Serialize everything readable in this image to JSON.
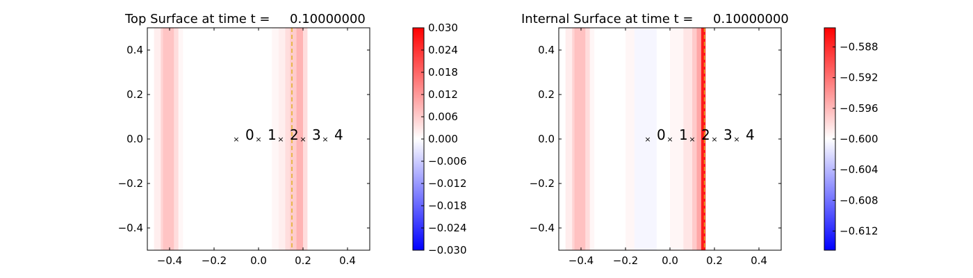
{
  "chart_data": [
    {
      "type": "heatmap",
      "title": "Top Surface at time t =     0.10000000",
      "xlim": [
        -0.5,
        0.5
      ],
      "ylim": [
        -0.5,
        0.5
      ],
      "x_ticks": [
        "−0.4",
        "−0.2",
        "0.0",
        "0.2",
        "0.4"
      ],
      "x_tick_values": [
        -0.4,
        -0.2,
        0.0,
        0.2,
        0.4
      ],
      "y_ticks": [
        "0.4",
        "0.2",
        "0.0",
        "−0.2",
        "−0.4"
      ],
      "y_tick_values": [
        0.4,
        0.2,
        0.0,
        -0.2,
        -0.4
      ],
      "colormap": {
        "min_color": "#0000ff",
        "mid_color": "#ffffff",
        "max_color": "#ff0000"
      },
      "vmin": -0.03,
      "vmax": 0.03,
      "colorbar_ticks": [
        "0.030",
        "0.024",
        "0.018",
        "0.012",
        "0.006",
        "0.000",
        "−0.006",
        "−0.012",
        "−0.018",
        "−0.024",
        "−0.030"
      ],
      "colorbar_tick_values": [
        0.03,
        0.024,
        0.018,
        0.012,
        0.006,
        0.0,
        -0.006,
        -0.012,
        -0.018,
        -0.024,
        -0.03
      ],
      "bands": [
        {
          "x0": -0.47,
          "x1": -0.44,
          "value": 0.002
        },
        {
          "x0": -0.44,
          "x1": -0.43,
          "value": 0.005
        },
        {
          "x0": -0.43,
          "x1": -0.38,
          "value": 0.007
        },
        {
          "x0": -0.38,
          "x1": -0.36,
          "value": 0.004
        },
        {
          "x0": -0.36,
          "x1": -0.34,
          "value": 0.001
        },
        {
          "x0": 0.06,
          "x1": 0.09,
          "value": 0.001
        },
        {
          "x0": 0.09,
          "x1": 0.12,
          "value": 0.002
        },
        {
          "x0": 0.12,
          "x1": 0.14,
          "value": 0.004
        },
        {
          "x0": 0.14,
          "x1": 0.17,
          "value": 0.006
        },
        {
          "x0": 0.17,
          "x1": 0.2,
          "value": 0.009
        },
        {
          "x0": 0.2,
          "x1": 0.22,
          "value": 0.004
        }
      ],
      "dashed_line_x": 0.15,
      "gauges": [
        {
          "x": -0.1,
          "y": 0.0,
          "label": "0"
        },
        {
          "x": 0.0,
          "y": 0.0,
          "label": "1"
        },
        {
          "x": 0.1,
          "y": 0.0,
          "label": "2"
        },
        {
          "x": 0.2,
          "y": 0.0,
          "label": "3"
        },
        {
          "x": 0.3,
          "y": 0.0,
          "label": "4"
        }
      ]
    },
    {
      "type": "heatmap",
      "title": "Internal Surface at time t =     0.10000000",
      "xlim": [
        -0.5,
        0.5
      ],
      "ylim": [
        -0.5,
        0.5
      ],
      "x_ticks": [
        "−0.4",
        "−0.2",
        "0.0",
        "0.2",
        "0.4"
      ],
      "x_tick_values": [
        -0.4,
        -0.2,
        0.0,
        0.2,
        0.4
      ],
      "y_ticks": [
        "0.4",
        "0.2",
        "0.0",
        "−0.2",
        "−0.4"
      ],
      "y_tick_values": [
        0.4,
        0.2,
        0.0,
        -0.2,
        -0.4
      ],
      "colormap": {
        "min_color": "#0000ff",
        "mid_color": "#ffffff",
        "max_color": "#ff0000"
      },
      "vmin": -0.6145,
      "vmax": -0.5855,
      "colorbar_ticks": [
        "−0.588",
        "−0.592",
        "−0.596",
        "−0.600",
        "−0.604",
        "−0.608",
        "−0.612"
      ],
      "colorbar_tick_values": [
        -0.588,
        -0.592,
        -0.596,
        -0.6,
        -0.604,
        -0.608,
        -0.612
      ],
      "bands": [
        {
          "x0": -0.47,
          "x1": -0.44,
          "value": -0.599
        },
        {
          "x0": -0.44,
          "x1": -0.43,
          "value": -0.5975
        },
        {
          "x0": -0.43,
          "x1": -0.38,
          "value": -0.5965
        },
        {
          "x0": -0.38,
          "x1": -0.36,
          "value": -0.598
        },
        {
          "x0": -0.36,
          "x1": -0.34,
          "value": -0.5995
        },
        {
          "x0": -0.2,
          "x1": -0.16,
          "value": -0.5995
        },
        {
          "x0": -0.16,
          "x1": -0.06,
          "value": -0.6005
        },
        {
          "x0": 0.0,
          "x1": 0.06,
          "value": -0.5995
        },
        {
          "x0": 0.06,
          "x1": 0.1,
          "value": -0.5985
        },
        {
          "x0": 0.1,
          "x1": 0.12,
          "value": -0.597
        },
        {
          "x0": 0.12,
          "x1": 0.14,
          "value": -0.595
        },
        {
          "x0": 0.14,
          "x1": 0.16,
          "value": -0.587
        }
      ],
      "dashed_line_x": 0.155,
      "gauges": [
        {
          "x": -0.1,
          "y": 0.0,
          "label": "0"
        },
        {
          "x": 0.0,
          "y": 0.0,
          "label": "1"
        },
        {
          "x": 0.1,
          "y": 0.0,
          "label": "2"
        },
        {
          "x": 0.2,
          "y": 0.0,
          "label": "3"
        },
        {
          "x": 0.3,
          "y": 0.0,
          "label": "4"
        }
      ]
    }
  ]
}
